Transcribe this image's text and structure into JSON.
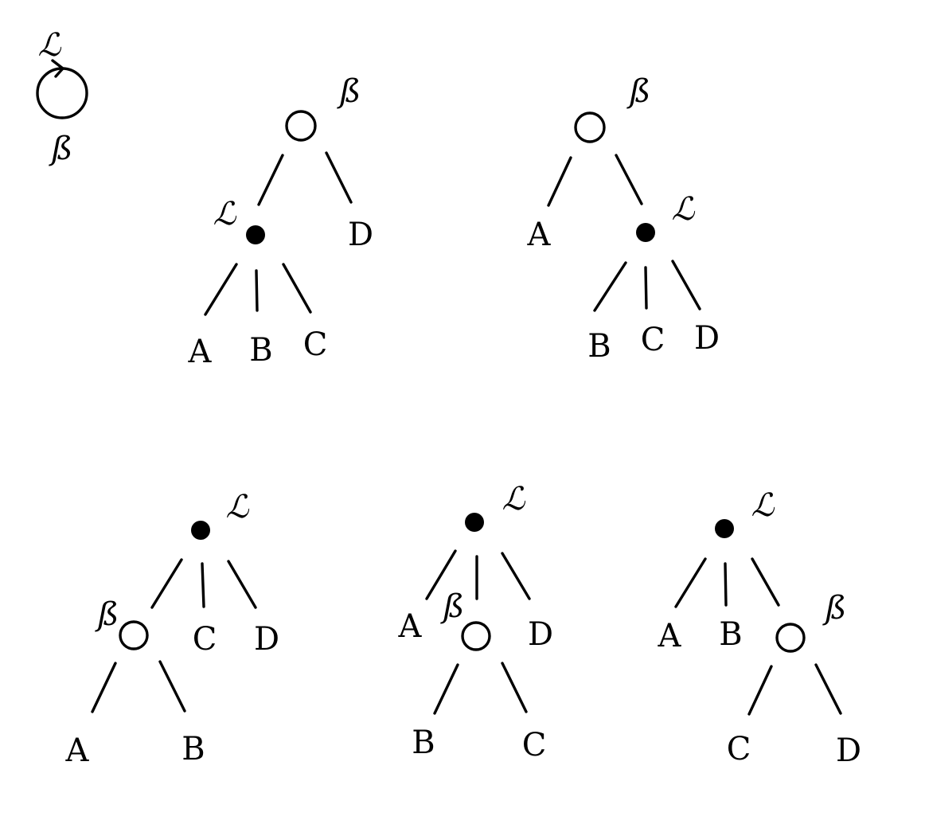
{
  "legend": {
    "top_label": "ℒ",
    "bottom_label": "ß"
  },
  "trees": [
    {
      "root": {
        "kind": "open",
        "label": "ß"
      },
      "children": [
        {
          "kind": "filled",
          "label": "ℒ",
          "children": [
            "A",
            "B",
            "C"
          ]
        },
        {
          "kind": "leaf",
          "label": "D"
        }
      ]
    },
    {
      "root": {
        "kind": "open",
        "label": "ß"
      },
      "children": [
        {
          "kind": "leaf",
          "label": "A"
        },
        {
          "kind": "filled",
          "label": "ℒ",
          "children": [
            "B",
            "C",
            "D"
          ]
        }
      ]
    },
    {
      "root": {
        "kind": "filled",
        "label": "ℒ"
      },
      "children": [
        {
          "kind": "open",
          "label": "ß",
          "children": [
            "A",
            "B"
          ]
        },
        {
          "kind": "leaf",
          "label": "C"
        },
        {
          "kind": "leaf",
          "label": "D"
        }
      ]
    },
    {
      "root": {
        "kind": "filled",
        "label": "ℒ"
      },
      "children": [
        {
          "kind": "leaf",
          "label": "A"
        },
        {
          "kind": "open",
          "label": "ß",
          "children": [
            "B",
            "C"
          ]
        },
        {
          "kind": "leaf",
          "label": "D"
        }
      ]
    },
    {
      "root": {
        "kind": "filled",
        "label": "ℒ"
      },
      "children": [
        {
          "kind": "leaf",
          "label": "A"
        },
        {
          "kind": "leaf",
          "label": "B"
        },
        {
          "kind": "open",
          "label": "ß",
          "children": [
            "C",
            "D"
          ]
        }
      ]
    }
  ]
}
